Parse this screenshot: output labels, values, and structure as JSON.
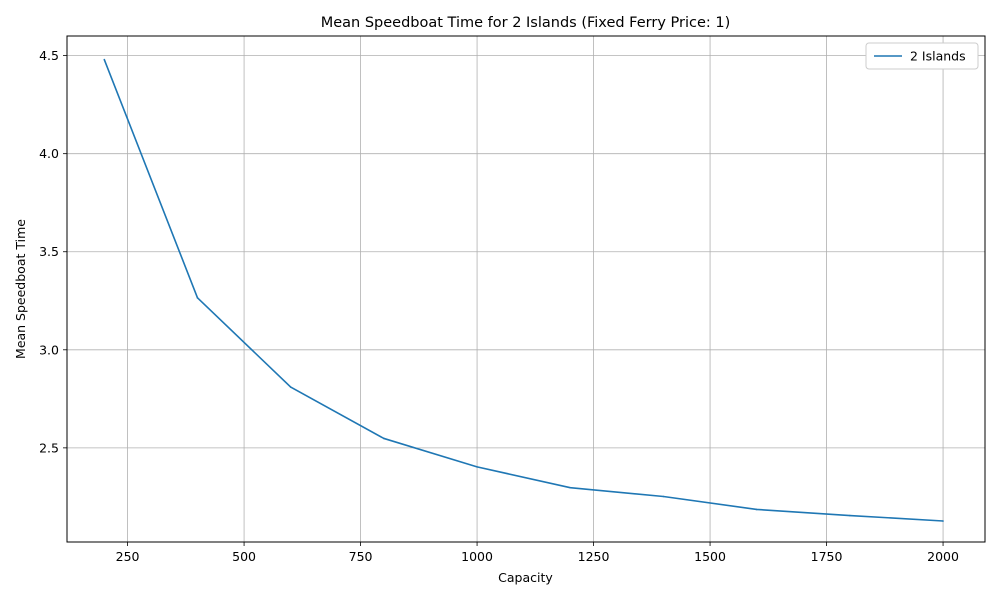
{
  "chart_data": {
    "type": "line",
    "title": "Mean Speedboat Time for 2 Islands (Fixed Ferry Price: 1)",
    "xlabel": "Capacity",
    "ylabel": "Mean Speedboat Time",
    "xlim": [
      120,
      2090
    ],
    "ylim": [
      2.02,
      4.6
    ],
    "xticks": [
      250,
      500,
      750,
      1000,
      1250,
      1500,
      1750,
      2000
    ],
    "xtick_labels": [
      "250",
      "500",
      "750",
      "1000",
      "1250",
      "1500",
      "1750",
      "2000"
    ],
    "yticks": [
      2.5,
      3.0,
      3.5,
      4.0,
      4.5
    ],
    "ytick_labels": [
      "2.5",
      "3.0",
      "3.5",
      "4.0",
      "4.5"
    ],
    "grid": true,
    "legend_position": "top-right",
    "series": [
      {
        "name": "2 Islands",
        "color": "#1f77b4",
        "x": [
          200,
          400,
          600,
          800,
          1000,
          1200,
          1400,
          1600,
          1800,
          2000
        ],
        "y": [
          4.48,
          3.265,
          2.81,
          2.548,
          2.403,
          2.297,
          2.252,
          2.186,
          2.155,
          2.127
        ]
      }
    ]
  }
}
